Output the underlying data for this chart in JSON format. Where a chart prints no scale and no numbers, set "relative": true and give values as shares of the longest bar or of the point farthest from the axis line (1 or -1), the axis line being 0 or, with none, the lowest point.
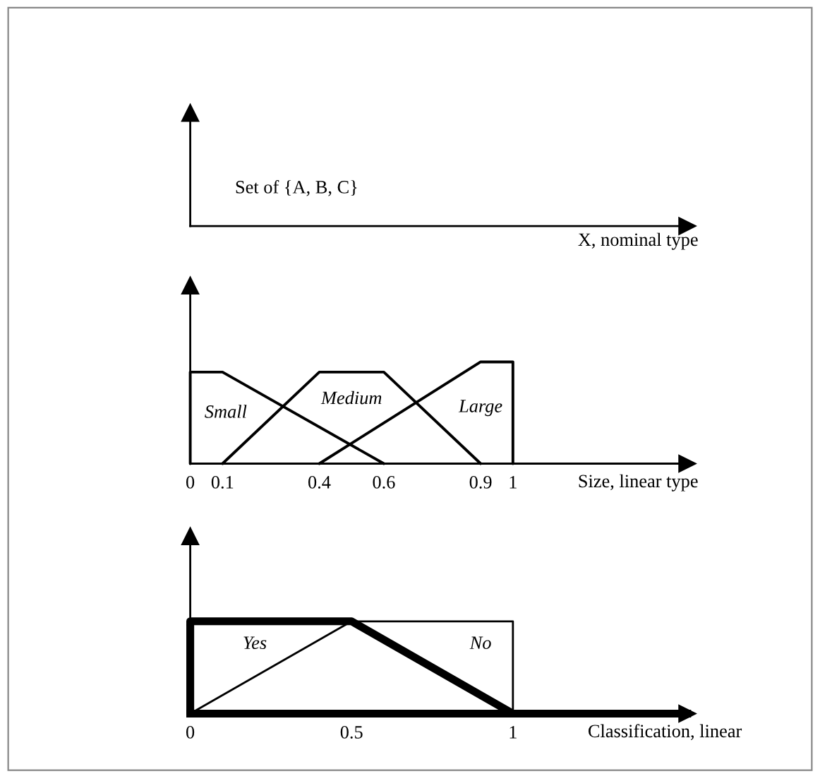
{
  "chart_data": [
    {
      "type": "other",
      "xlabel": "X, nominal type",
      "annotations": [
        "Set of {A, B, C}"
      ]
    },
    {
      "type": "line",
      "relative": true,
      "xlabel": "Size, linear type",
      "xlim": [
        0,
        1.54
      ],
      "xticks": [
        0,
        0.1,
        0.4,
        0.6,
        0.9,
        1
      ],
      "tick_labels": "x",
      "grid": false,
      "marker": "none",
      "line_style": "solid",
      "series": [
        {
          "name": "Small",
          "color": "#000000",
          "x": [
            0,
            0,
            0.1,
            0.6
          ],
          "values": [
            0,
            0.9,
            0.9,
            0
          ]
        },
        {
          "name": "Medium",
          "color": "#000000",
          "x": [
            0.1,
            0.4,
            0.6,
            0.9
          ],
          "values": [
            0,
            0.9,
            0.9,
            0
          ]
        },
        {
          "name": "Large",
          "color": "#000000",
          "x": [
            0.4,
            0.9,
            1,
            1
          ],
          "values": [
            0,
            1,
            1,
            0
          ]
        }
      ]
    },
    {
      "type": "line",
      "relative": true,
      "xlabel": "Classification, linear",
      "xlim": [
        0,
        1.54
      ],
      "xticks": [
        0,
        0.5,
        1
      ],
      "tick_labels": "x",
      "grid": false,
      "marker": "none",
      "line_style": "solid",
      "series": [
        {
          "name": "Yes",
          "color": "#000000",
          "x": [
            0,
            0,
            0.5,
            1
          ],
          "values": [
            0,
            1,
            1,
            0
          ]
        },
        {
          "name": "No",
          "color": "#000000",
          "x": [
            0,
            0.5,
            1,
            1
          ],
          "values": [
            0,
            1,
            1,
            0
          ]
        }
      ]
    }
  ]
}
